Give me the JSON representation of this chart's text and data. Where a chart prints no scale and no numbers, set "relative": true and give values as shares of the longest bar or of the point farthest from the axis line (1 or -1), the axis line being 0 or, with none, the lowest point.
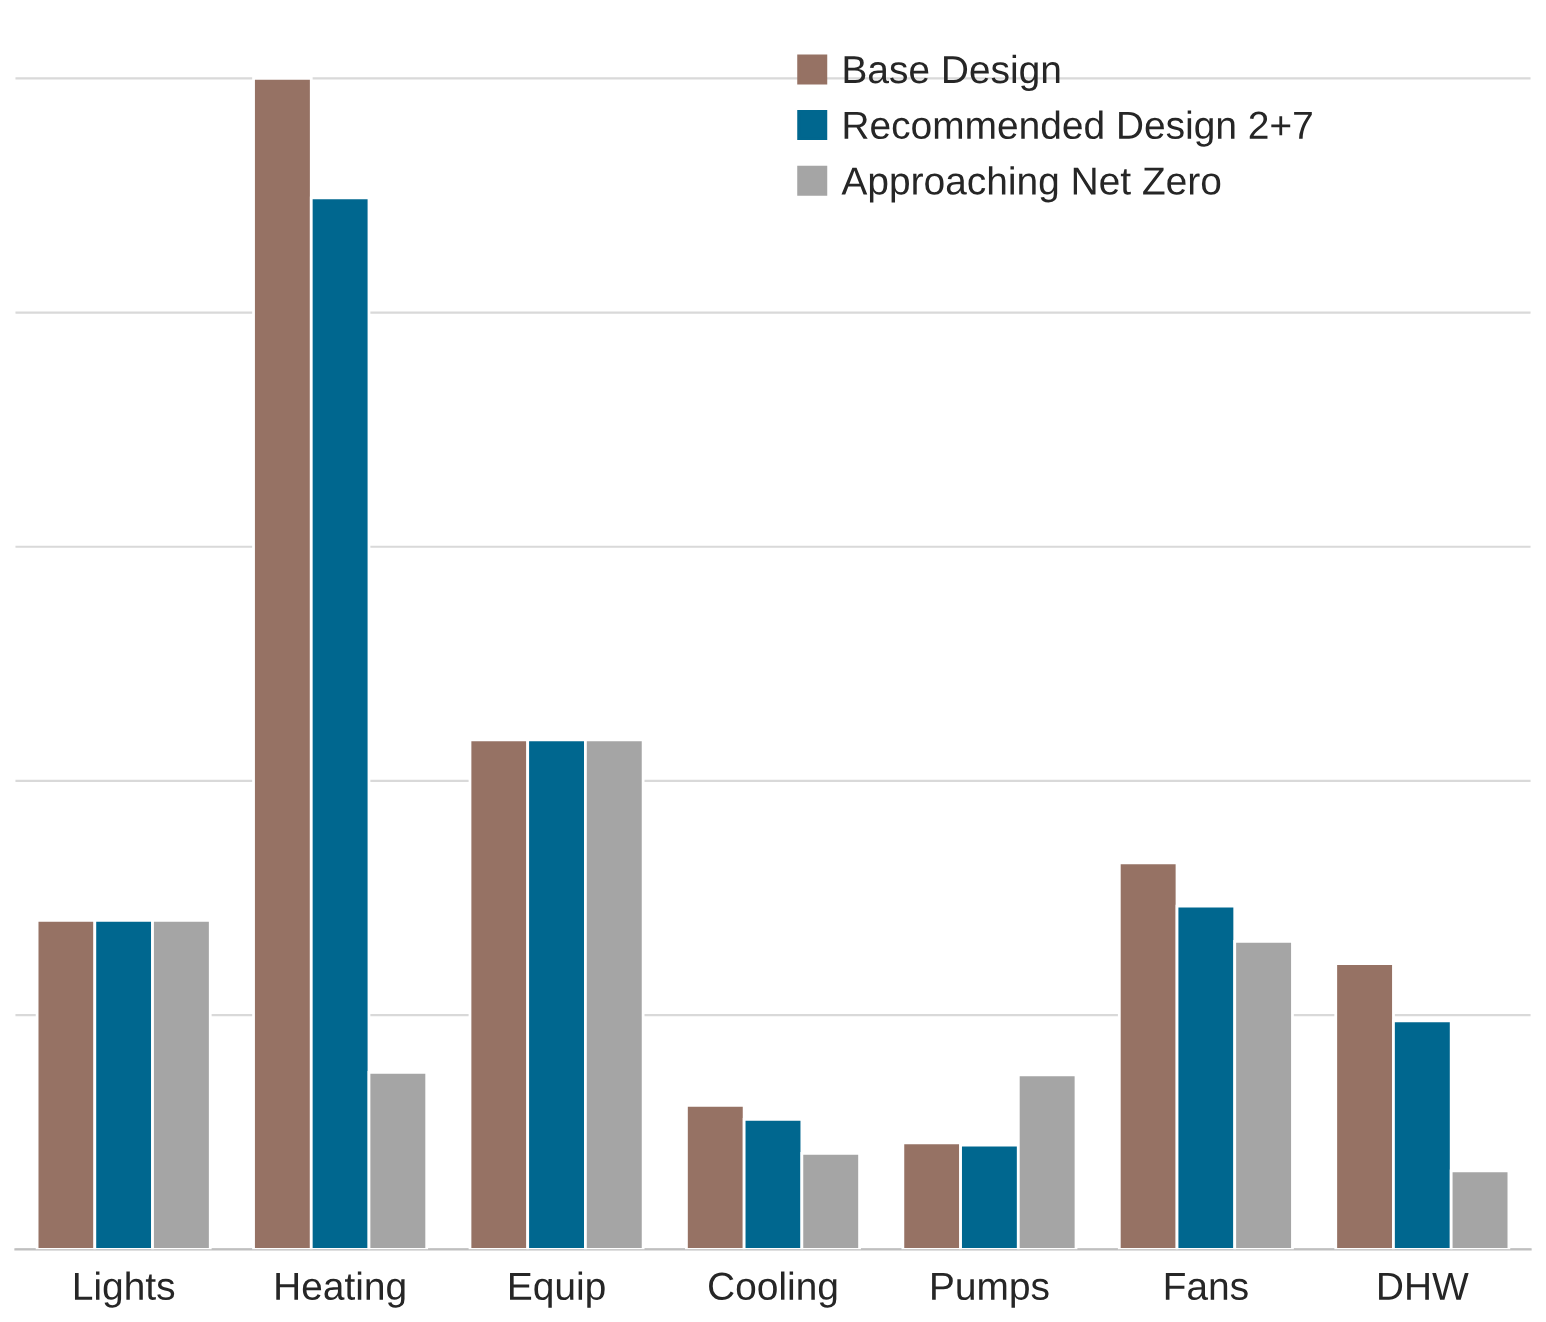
{
  "chart_data": {
    "type": "bar",
    "relative": true,
    "categories": [
      "Lights",
      "Heating",
      "Equip",
      "Cooling",
      "Pumps",
      "Fans",
      "DHW"
    ],
    "series": [
      {
        "name": "Base Design",
        "color": "#967264",
        "values": [
          0.281,
          1,
          0.435,
          0.123,
          0.091,
          0.33,
          0.244
        ]
      },
      {
        "name": "Recommended Design 2+7",
        "color": "#00678f",
        "values": [
          0.281,
          0.898,
          0.435,
          0.111,
          0.089,
          0.293,
          0.195
        ]
      },
      {
        "name": "Approaching Net Zero",
        "color": "#a5a5a5",
        "values": [
          0.281,
          0.151,
          0.435,
          0.082,
          0.149,
          0.263,
          0.067
        ]
      }
    ],
    "grid": "y",
    "legend": "top right"
  }
}
